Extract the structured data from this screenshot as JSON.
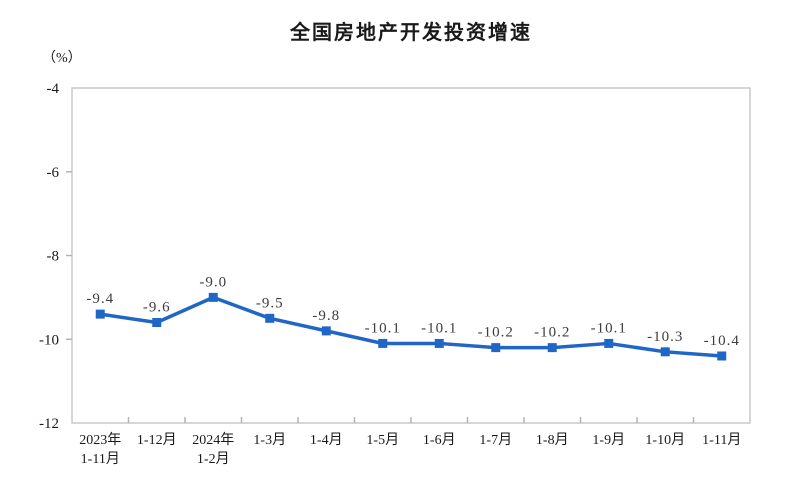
{
  "title": "全国房地产开发投资增速",
  "y_axis_unit": "（%）",
  "colors": {
    "line": "#2066c6",
    "marker": "#2066c6",
    "plot_border": "#c9c9c9",
    "tick": "#b3b3b3",
    "axis_text": "#1a1a1a",
    "data_label_text": "#3d3d3d",
    "background": "#ffffff"
  },
  "chart_data": {
    "type": "line",
    "title": "全国房地产开发投资增速",
    "categories": [
      [
        "2023年",
        "1-11月"
      ],
      [
        "1-12月"
      ],
      [
        "2024年",
        "1-2月"
      ],
      [
        "1-3月"
      ],
      [
        "1-4月"
      ],
      [
        "1-5月"
      ],
      [
        "1-6月"
      ],
      [
        "1-7月"
      ],
      [
        "1-8月"
      ],
      [
        "1-9月"
      ],
      [
        "1-10月"
      ],
      [
        "1-11月"
      ]
    ],
    "values": [
      -9.4,
      -9.6,
      -9.0,
      -9.5,
      -9.8,
      -10.1,
      -10.1,
      -10.2,
      -10.2,
      -10.1,
      -10.3,
      -10.4
    ],
    "data_labels": [
      "-9.4",
      "-9.6",
      "-9.0",
      "-9.5",
      "-9.8",
      "-10.1",
      "-10.1",
      "-10.2",
      "-10.2",
      "-10.1",
      "-10.3",
      "-10.4"
    ],
    "xlabel": "",
    "ylabel": "（%）",
    "ylim": [
      -12,
      -4
    ],
    "yticks": [
      -4,
      -6,
      -8,
      -10,
      -12
    ],
    "ytick_labels": [
      "-4",
      "-6",
      "-8",
      "-10",
      "-12"
    ],
    "grid": false,
    "legend": "none",
    "marker": "square"
  }
}
